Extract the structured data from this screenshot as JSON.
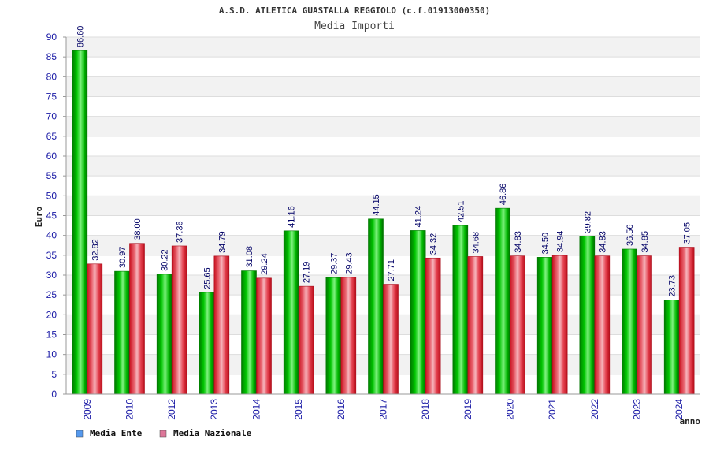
{
  "chart_data": {
    "type": "bar",
    "title": "A.S.D. ATLETICA GUASTALLA REGGIOLO (c.f.01913000350)",
    "subtitle": "Media Importi",
    "xlabel": "anno",
    "ylabel": "Euro",
    "ylim": [
      0,
      90
    ],
    "ytick_step": 5,
    "ytick_labels": [
      "0",
      "5",
      "10",
      "15",
      "20",
      "25",
      "30",
      "35",
      "40",
      "45",
      "50",
      "55",
      "60",
      "65",
      "70",
      "75",
      "80",
      "85",
      "90"
    ],
    "categories": [
      "2009",
      "2010",
      "2012",
      "2013",
      "2014",
      "2015",
      "2016",
      "2017",
      "2018",
      "2019",
      "2020",
      "2021",
      "2022",
      "2023",
      "2024"
    ],
    "series": [
      {
        "name": "Media Ente",
        "color": "#00aa00",
        "legend_color": "#5599ee",
        "values": [
          86.6,
          30.97,
          30.22,
          25.65,
          31.08,
          41.16,
          29.37,
          44.15,
          41.24,
          42.51,
          46.86,
          34.5,
          39.82,
          36.56,
          23.73
        ],
        "labels": [
          "86.60",
          "30.97",
          "30.22",
          "25.65",
          "31.08",
          "41.16",
          "29.37",
          "44.15",
          "41.24",
          "42.51",
          "46.86",
          "34.50",
          "39.82",
          "36.56",
          "23.73"
        ]
      },
      {
        "name": "Media Nazionale",
        "color": "#dd2233",
        "legend_color": "#dd7799",
        "values": [
          32.82,
          38.0,
          37.36,
          34.79,
          29.24,
          27.19,
          29.43,
          27.71,
          34.32,
          34.68,
          34.83,
          34.94,
          34.83,
          34.85,
          37.05
        ],
        "labels": [
          "32.82",
          "38.00",
          "37.36",
          "34.79",
          "29.24",
          "27.19",
          "29.43",
          "27.71",
          "34.32",
          "34.68",
          "34.83",
          "34.94",
          "34.83",
          "34.85",
          "37.05"
        ]
      }
    ],
    "grid": true,
    "legend_position": "bottom-left"
  }
}
